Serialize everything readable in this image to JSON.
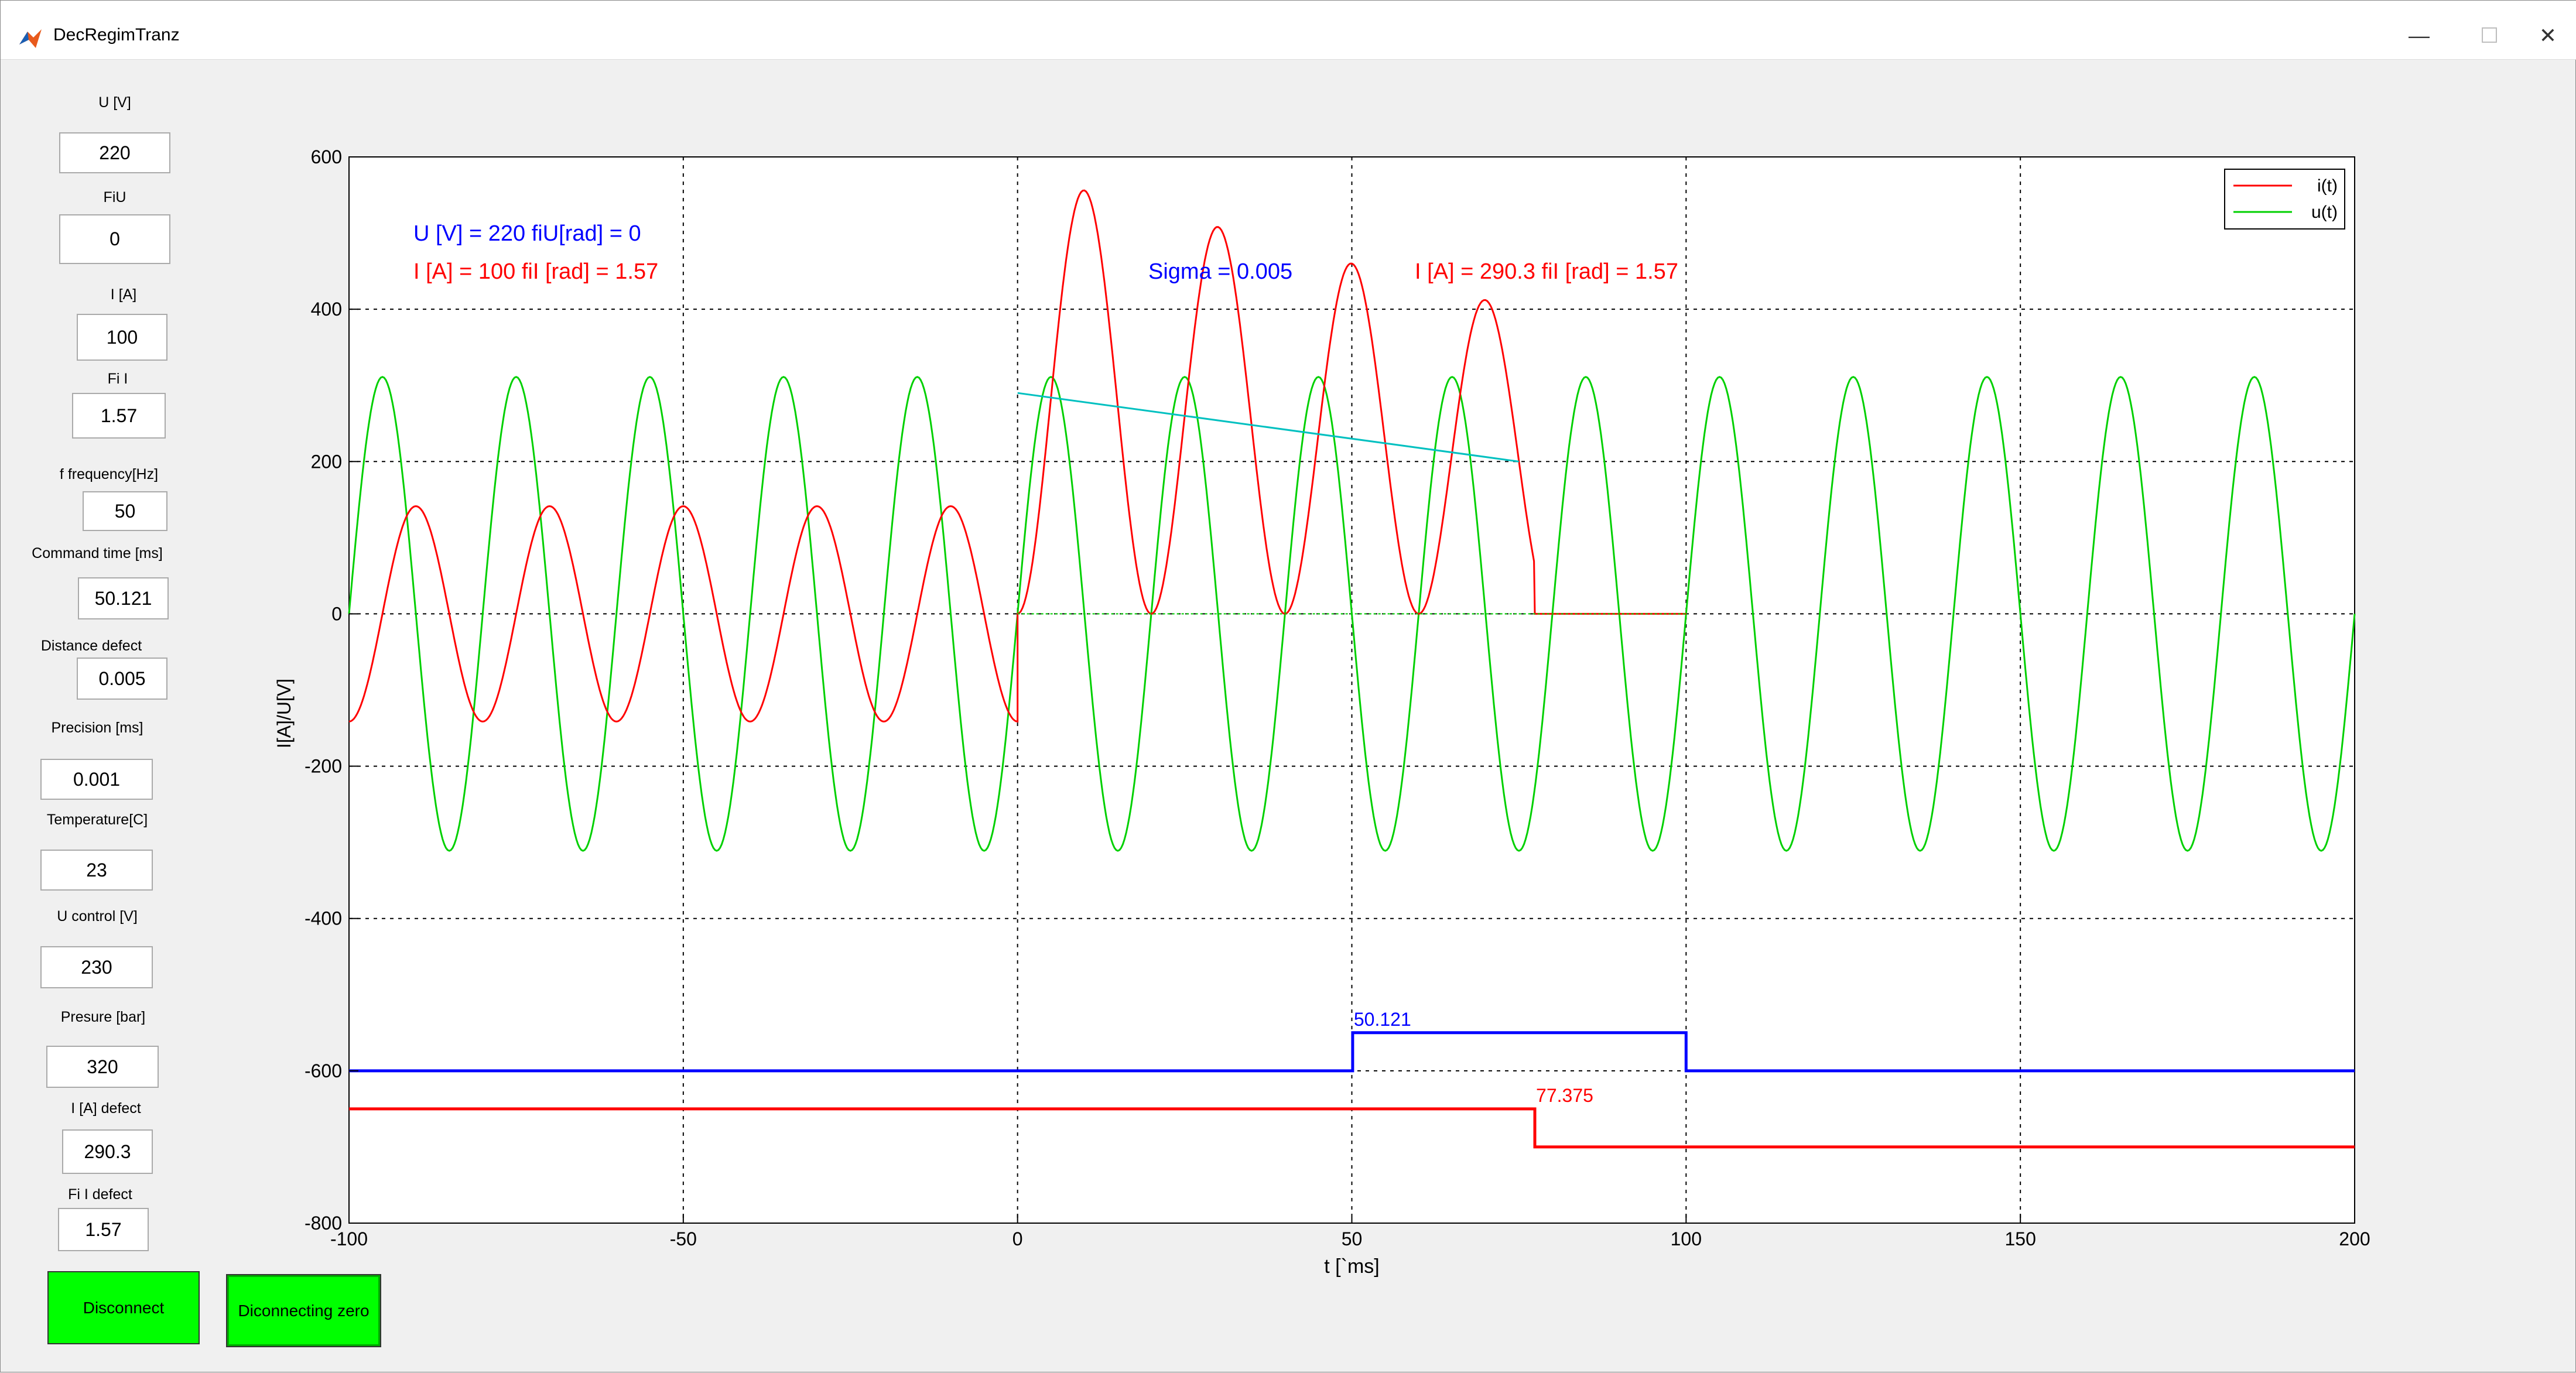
{
  "window": {
    "title": "DecRegimTranz",
    "controls": {
      "minimize": "—",
      "maximize": "☐",
      "close": "✕"
    }
  },
  "params": [
    {
      "label": "U [V]",
      "value": "220"
    },
    {
      "label": "FiU",
      "value": "0"
    },
    {
      "label": "I [A]",
      "value": "100"
    },
    {
      "label": "Fi I",
      "value": "1.57"
    },
    {
      "label": "f frequency[Hz]",
      "value": "50"
    },
    {
      "label": "Command time [ms]",
      "value": "50.121"
    },
    {
      "label": "Distance defect",
      "value": "0.005"
    },
    {
      "label": "Precision  [ms]",
      "value": "0.001"
    },
    {
      "label": "Temperature[C]",
      "value": "23"
    },
    {
      "label": "U control [V]",
      "value": "230"
    },
    {
      "label": "Presure [bar]",
      "value": "320"
    },
    {
      "label": "I [A] defect",
      "value": "290.3"
    },
    {
      "label": "Fi I defect",
      "value": "1.57"
    }
  ],
  "buttons": {
    "disconnect": "Disconnect",
    "disconnect_zero": "Diconnecting zero"
  },
  "chart_data": {
    "type": "line",
    "xlabel": "t [`ms]",
    "ylabel": "I[A]/U[V]",
    "xlim": [
      -100,
      200
    ],
    "ylim": [
      -800,
      600
    ],
    "xticks": [
      -100,
      -50,
      0,
      50,
      100,
      150,
      200
    ],
    "yticks": [
      -800,
      -600,
      -400,
      -200,
      0,
      200,
      400,
      600
    ],
    "grid": true,
    "legend_position": "top-right",
    "legend": [
      "i(t)",
      "u(t)"
    ],
    "annotations": {
      "u_info": "U [V] = 220   fiU[rad] = 0",
      "i_info": "I [A] = 100    fiI [rad] = 1.57",
      "sigma": "Sigma = 0.005",
      "defect_info": "I [A] = 290.3  fiI [rad] = 1.57",
      "command_marker": "50.121",
      "zero_marker": "77.375"
    },
    "series": [
      {
        "name": "i(t)",
        "color": "#ff0000",
        "pre_amplitude": 141.4,
        "post_peaks": [
          [
            10,
            565
          ],
          [
            30,
            538
          ],
          [
            50,
            516
          ],
          [
            70,
            495
          ]
        ],
        "cut_time": 77.375
      },
      {
        "name": "u(t)",
        "color": "#00d000",
        "amplitude": 311.1,
        "freq_hz": 50
      },
      {
        "name": "envelope",
        "color": "#00c0c0",
        "points": [
          [
            0,
            290
          ],
          [
            75,
            200
          ]
        ]
      },
      {
        "name": "command signal",
        "color": "#0000ff",
        "points": [
          [
            -100,
            -600
          ],
          [
            50.121,
            -600
          ],
          [
            50.121,
            -550
          ],
          [
            100,
            -550
          ],
          [
            100,
            -600
          ],
          [
            200,
            -600
          ]
        ]
      },
      {
        "name": "disconnect signal",
        "color": "#ff0000",
        "points": [
          [
            -100,
            -650
          ],
          [
            77.375,
            -650
          ],
          [
            77.375,
            -700
          ],
          [
            200,
            -700
          ]
        ]
      }
    ]
  }
}
